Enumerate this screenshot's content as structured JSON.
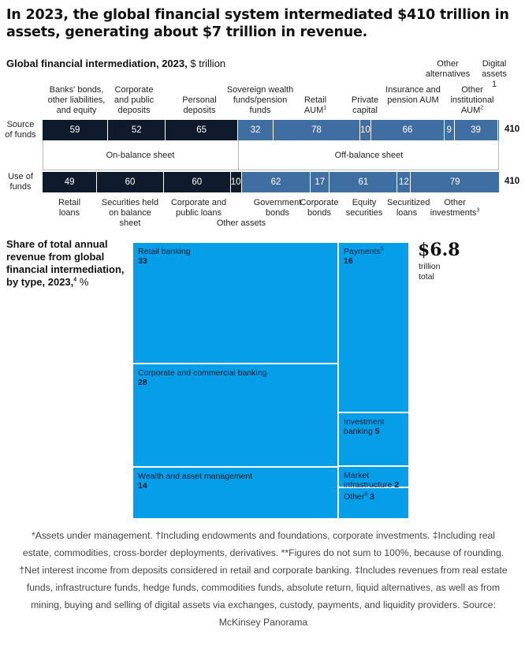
{
  "title": "In 2023, the global financial system intermediated $410 trillion in assets, generating about $7 trillion in revenue.",
  "intermediation": {
    "title_bold": "Global financial intermediation, 2023,",
    "title_unit": "$ trillion",
    "source_label": "Source of funds",
    "use_label": "Use of funds",
    "on_balance_label": "On-balance sheet",
    "off_balance_label": "Off-balance sheet"
  },
  "treemap": {
    "title_bold": "Share of total annual revenue from global financial intermediation, by type, 2023,",
    "title_sup": "4",
    "title_unit": "%",
    "total_value": "$6.8",
    "total_sub1": "trillion",
    "total_sub2": "total"
  },
  "chart_data": [
    {
      "type": "bar",
      "orientation": "horizontal-stacked",
      "title": "Global financial intermediation, 2023, $ trillion",
      "rows": [
        {
          "name": "Source of funds",
          "total": "410",
          "segments": [
            {
              "label": "Banks' bonds, other liabilities, and equity",
              "value": 59,
              "color": "#0e1b2c"
            },
            {
              "label": "Corporate and public deposits",
              "value": 52,
              "color": "#0e1b2c"
            },
            {
              "label": "Personal deposits",
              "value": 65,
              "color": "#0e1b2c"
            },
            {
              "label": "Sovereign wealth funds/pension funds",
              "value": 32,
              "color": "#3f6ea3"
            },
            {
              "label": "Retail AUM",
              "sup": "1",
              "value": 78,
              "color": "#3f6ea3"
            },
            {
              "label": "Private capital",
              "value": 10,
              "color": "#3f6ea3"
            },
            {
              "label": "Insurance and pension AUM",
              "value": 66,
              "color": "#3f6ea3"
            },
            {
              "label": "Other alternatives",
              "value": 9,
              "color": "#3f6ea3"
            },
            {
              "label": "Other institutional AUM",
              "sup": "2",
              "value": 39,
              "color": "#3f6ea3"
            },
            {
              "label": "Digital assets",
              "value": 1,
              "color": "#3f6ea3"
            }
          ]
        },
        {
          "name": "Use of funds",
          "total": "410",
          "segments": [
            {
              "label": "Retail loans",
              "value": 49,
              "color": "#0e1b2c"
            },
            {
              "label": "Securities held on balance sheet",
              "value": 60,
              "color": "#0e1b2c"
            },
            {
              "label": "Corporate and public loans",
              "value": 60,
              "color": "#0e1b2c"
            },
            {
              "label": "Other assets",
              "value": 10,
              "color": "#0e1b2c"
            },
            {
              "label": "Government bonds",
              "value": 62,
              "color": "#3f6ea3"
            },
            {
              "label": "Corporate bonds",
              "value": 17,
              "color": "#3f6ea3"
            },
            {
              "label": "Equity securities",
              "value": 61,
              "color": "#3f6ea3"
            },
            {
              "label": "Securitized loans",
              "value": 12,
              "color": "#3f6ea3"
            },
            {
              "label": "Other investments",
              "sup": "3",
              "value": 79,
              "color": "#3f6ea3"
            }
          ]
        }
      ]
    },
    {
      "type": "treemap",
      "title": "Share of total annual revenue from global financial intermediation, by type, 2023, %",
      "color": "#049fe8",
      "items": [
        {
          "label": "Retail banking",
          "value": 33
        },
        {
          "label": "Corporate and commercial banking",
          "value": 28
        },
        {
          "label": "Wealth and asset management",
          "value": 14
        },
        {
          "label": "Payments",
          "sup": "5",
          "value": 16
        },
        {
          "label": "Investment banking",
          "value": 5
        },
        {
          "label": "Market infrastructure",
          "value": 2
        },
        {
          "label": "Other",
          "sup": "6",
          "value": 3
        }
      ]
    }
  ],
  "footnote": "*Assets under management. †Including endowments and foundations, corporate investments. ‡Including real estate, commodities, cross-border deployments, derivatives. **Figures do not sum to 100%, because of rounding. †Net interest income from deposits considered in retail and corporate banking. ‡Includes revenues from real estate funds, infrastructure funds, hedge funds, commodities funds, absolute return, liquid alternatives, as well as from mining, buying and selling of digital assets via exchanges, custody, payments, and liquidity providers. Source: McKinsey Panorama"
}
